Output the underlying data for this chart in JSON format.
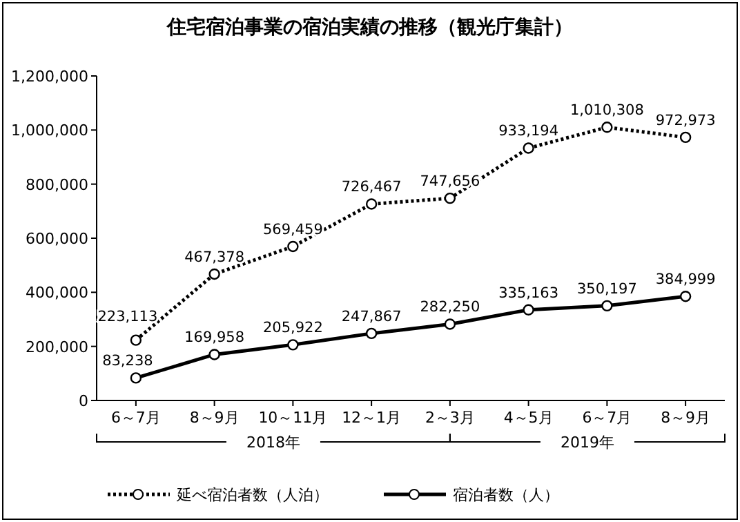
{
  "chart_data": {
    "type": "line",
    "title": "住宅宿泊事業の宿泊実績の推移（観光庁集計）",
    "categories": [
      "6～7月",
      "8～9月",
      "10～11月",
      "12～1月",
      "2～3月",
      "4～5月",
      "6～7月",
      "8～9月"
    ],
    "series": [
      {
        "name": "延べ宿泊者数（人泊）",
        "color": "#000000",
        "line_style": "dotted",
        "values": [
          223113,
          467378,
          569459,
          726467,
          747656,
          933194,
          1010308,
          972973
        ],
        "value_labels": [
          "223,113",
          "467,378",
          "569,459",
          "726,467",
          "747,656",
          "933,194",
          "1,010,308",
          "972,973"
        ]
      },
      {
        "name": "宿泊者数（人）",
        "color": "#000000",
        "line_style": "solid",
        "values": [
          83238,
          169958,
          205922,
          247867,
          282250,
          335163,
          350197,
          384999
        ],
        "value_labels": [
          "83,238",
          "169,958",
          "205,922",
          "247,867",
          "282,250",
          "335,163",
          "350,197",
          "384,999"
        ]
      }
    ],
    "ylim": [
      0,
      1200000
    ],
    "yticks": [
      0,
      {
        "value": 200000,
        "label": "200,000"
      },
      {
        "value": 400000,
        "label": "400,000"
      },
      {
        "value": 600000,
        "label": "600,000"
      },
      {
        "value": 800000,
        "label": "800,000"
      },
      {
        "value": 1000000,
        "label": "1,000,000"
      },
      {
        "value": 1200000,
        "label": "1,200,000"
      }
    ],
    "annotations": [
      "2018年",
      "2019年"
    ],
    "marker": "circle",
    "legend": "bottom"
  }
}
